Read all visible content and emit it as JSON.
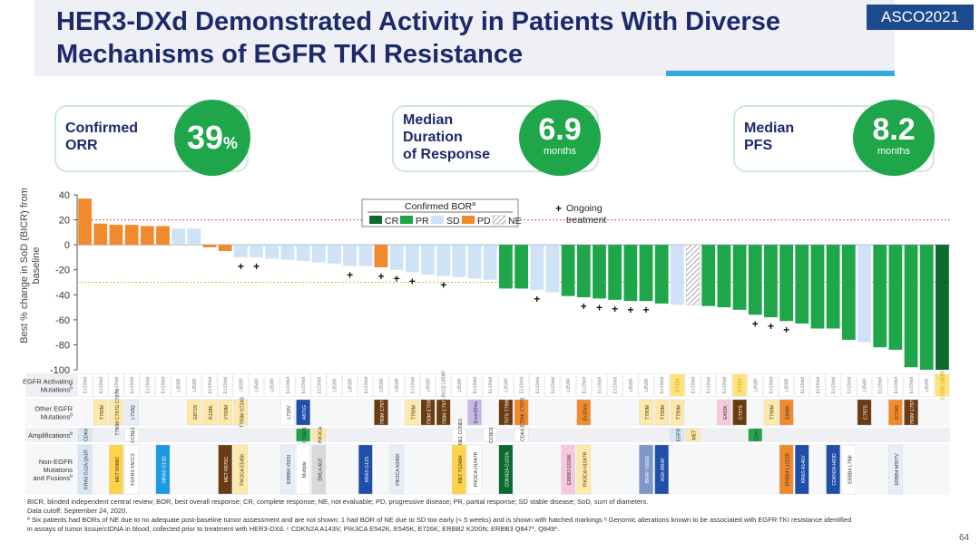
{
  "header": {
    "title_line1": "HER3-DXd Demonstrated Activity in Patients With Diverse",
    "title_line2": "Mechanisms of EGFR TKI Resistance",
    "badge": "ASCO2021"
  },
  "kpis": [
    {
      "label": [
        "Confirmed",
        "ORR"
      ],
      "value": "39",
      "unit": "%"
    },
    {
      "label": [
        "Median",
        "Duration",
        "of Response"
      ],
      "value": "6.9",
      "unit": "months"
    },
    {
      "label": [
        "Median",
        "PFS"
      ],
      "value": "8.2",
      "unit": "months"
    }
  ],
  "legend": {
    "title": "Confirmed BOR",
    "title_sup": "a",
    "entries": [
      {
        "label": "CR",
        "color": "#0c6a2f"
      },
      {
        "label": "PR",
        "color": "#1fa64a"
      },
      {
        "label": "SD",
        "color": "#cfe2f6"
      },
      {
        "label": "PD",
        "color": "#f08a2c"
      },
      {
        "label": "NE",
        "color": "hatched"
      }
    ],
    "ongoing_symbol": "+",
    "ongoing_label": [
      "Ongoing",
      "treatment"
    ]
  },
  "chart_data": {
    "type": "bar",
    "ylabel": "Best % change in SoD (BICR) from baseline",
    "ylim": [
      -100,
      40
    ],
    "yticks": [
      40,
      20,
      0,
      -20,
      -40,
      -60,
      -80,
      -100
    ],
    "reference_lines": [
      20,
      -30
    ],
    "bor_colors": {
      "CR": "#0c6a2f",
      "PR": "#1fa64a",
      "SD": "#cfe2f6",
      "PD": "#f08a2c",
      "NE": "hatched"
    },
    "values": [
      37,
      17,
      16,
      16,
      15,
      15,
      13,
      13,
      -2,
      -5,
      -10,
      -10,
      -11,
      -12,
      -13,
      -14,
      -15,
      -17,
      -17,
      -18,
      -20,
      -22,
      -24,
      -25,
      -26,
      -27,
      -28,
      -35,
      -35,
      -36,
      -38,
      -41,
      -42,
      -43,
      -44,
      -45,
      -45,
      -47,
      -48,
      -48,
      -49,
      -50,
      -52,
      -56,
      -58,
      -61,
      -63,
      -67,
      -67,
      -76,
      -78,
      -82,
      -84,
      -98,
      -100,
      -100
    ],
    "bor": [
      "PD",
      "PD",
      "PD",
      "PD",
      "PD",
      "PD",
      "SD",
      "SD",
      "PD",
      "PD",
      "SD",
      "SD",
      "SD",
      "SD",
      "SD",
      "SD",
      "SD",
      "SD",
      "SD",
      "PD",
      "SD",
      "SD",
      "SD",
      "SD",
      "SD",
      "SD",
      "SD",
      "PR",
      "PR",
      "SD",
      "SD",
      "PR",
      "PR",
      "PR",
      "PR",
      "PR",
      "PR",
      "PR",
      "SD",
      "NE",
      "PR",
      "PR",
      "PR",
      "PR",
      "PR",
      "PR",
      "PR",
      "PR",
      "PR",
      "PR",
      "SD",
      "PR",
      "PR",
      "PR",
      "PR",
      "CR"
    ],
    "ongoing": [
      10,
      11,
      17,
      19,
      20,
      21,
      23,
      29,
      32,
      33,
      34,
      35,
      36,
      43,
      44,
      45,
      53,
      55
    ],
    "table_rows": [
      {
        "label": [
          "EGFR Activating",
          "Mutations"
        ],
        "sup": "b"
      },
      {
        "label": [
          "Other EGFR",
          "Mutations"
        ],
        "sup": "b"
      },
      {
        "label": [
          "Amplifications"
        ],
        "sup": "b"
      },
      {
        "label": [
          "Non-EGFR",
          "Mutations",
          "and Fusions"
        ],
        "sup": "b"
      }
    ],
    "activating": [
      "Ex19del",
      "Ex19del",
      "Ex19del",
      "Ex19del",
      "Ex19del",
      "Ex19del",
      "L858R",
      "L858R",
      "Ex19del",
      "Ex19del",
      "L858R",
      "L858R",
      "L858R",
      "Ex19del",
      "Ex19del",
      "Ex19del",
      "L858R",
      "L858R",
      "Ex19del",
      "L858R",
      "L858R",
      "Ex19del",
      "L858R",
      "L861Q L858R",
      "L858R",
      "Ex19del",
      "Ex19del",
      "L858R",
      "Ex19del",
      "Ex19del",
      "Ex19del",
      "L858R",
      "Ex19del",
      "Ex19del",
      "Ex19del",
      "L858R",
      "L858R",
      "Ex19del",
      "G719Y",
      "Ex19del",
      "Ex19del",
      "Ex19del",
      "G719Y",
      "L858R",
      "Ex19del",
      "L858R",
      "Ex19del",
      "Ex19del",
      "Ex19del",
      "Ex19del",
      "L858R",
      "Ex19del",
      "Ex19del",
      "Ex19del",
      "L858R",
      "G719X L858R"
    ],
    "other_egfr": [
      {
        "i": 1,
        "text": "T790M",
        "color": "#ffe9a8"
      },
      {
        "i": 2,
        "text": "T790M C797G C797S",
        "color": "#ffe9a8"
      },
      {
        "i": 3,
        "text": "L718Q",
        "color": "#e8eef7"
      },
      {
        "i": 7,
        "text": "G873S",
        "color": "#ffe9a8"
      },
      {
        "i": 8,
        "text": "R108K",
        "color": "#ffe9a8"
      },
      {
        "i": 9,
        "text": "V769M",
        "color": "#ffe9a8"
      },
      {
        "i": 10,
        "text": "T790M G724S",
        "color": "#ffe9a8"
      },
      {
        "i": 13,
        "text": "L718V",
        "color": "#ffffff"
      },
      {
        "i": 14,
        "text": "A871G",
        "color": "#1f4fa8"
      },
      {
        "i": 19,
        "text": "T790M C797S",
        "color": "#6b3b12"
      },
      {
        "i": 21,
        "text": "T790M",
        "color": "#ffe9a8"
      },
      {
        "i": 22,
        "text": "T790M E709G",
        "color": "#6b3b12"
      },
      {
        "i": 23,
        "text": "T790M C797S",
        "color": "#6b3b12"
      },
      {
        "i": 25,
        "text": "Exon20ins",
        "color": "#c8b8e8"
      },
      {
        "i": 27,
        "text": "C797S T790M",
        "color": "#6b3b12"
      },
      {
        "i": 28,
        "text": "E709K C797S",
        "color": "#f08a2c"
      },
      {
        "i": 32,
        "text": "Ex20ins",
        "color": "#f08a2c"
      },
      {
        "i": 36,
        "text": "T790M",
        "color": "#ffe9a8"
      },
      {
        "i": 37,
        "text": "T790M",
        "color": "#ffe9a8"
      },
      {
        "i": 38,
        "text": "T790M",
        "color": "#ffe9a8"
      },
      {
        "i": 41,
        "text": "E492K",
        "color": "#f7c8dc"
      },
      {
        "i": 42,
        "text": "C797S",
        "color": "#6b3b12"
      },
      {
        "i": 44,
        "text": "T790M",
        "color": "#ffe9a8"
      },
      {
        "i": 45,
        "text": "E848K",
        "color": "#f08a2c"
      },
      {
        "i": 50,
        "text": "C797S",
        "color": "#6b3b12"
      },
      {
        "i": 52,
        "text": "G724S",
        "color": "#f08a2c"
      },
      {
        "i": 53,
        "text": "T790M C797S",
        "color": "#6b3b12"
      }
    ],
    "amplifications": [
      {
        "i": 0,
        "text": "CDK4",
        "color": "#d6e6f5"
      },
      {
        "i": 3,
        "text": "CCNE1",
        "color": "#ffffff"
      },
      {
        "i": 14,
        "text": "CCND1",
        "color": "#1fa64a"
      },
      {
        "i": 15,
        "text": "PIK3CA",
        "color": "#ffe9a8"
      },
      {
        "i": 24,
        "text": "CCNE1 CCND1",
        "color": "#ffffff"
      },
      {
        "i": 26,
        "text": "CCND1",
        "color": "#ffffff"
      },
      {
        "i": 28,
        "text": "CDK4",
        "color": "#ffffff"
      },
      {
        "i": 38,
        "text": "EGFR",
        "color": "#d6e6f5"
      },
      {
        "i": 39,
        "text": "MET",
        "color": "#ffe9a8"
      },
      {
        "i": 43,
        "text": "CDK4",
        "color": "#1fa64a"
      }
    ],
    "non_egfr": [
      {
        "i": 0,
        "text": "KRAS G12A Q61R",
        "color": "#d6e6f5"
      },
      {
        "i": 2,
        "text": "MET R988C",
        "color": "#ffd24a"
      },
      {
        "i": 3,
        "text": "FGFR3-TACC3",
        "color": "#ffffff"
      },
      {
        "i": 5,
        "text": "NRAS G13D",
        "color": "#1c9ae0"
      },
      {
        "i": 9,
        "text": "MET R970C",
        "color": "#6b3b12"
      },
      {
        "i": 10,
        "text": "PIK3CA E545K",
        "color": "#ffe9a8"
      },
      {
        "i": 13,
        "text": "ERBB4 V903I",
        "color": "#e8eef7"
      },
      {
        "i": 14,
        "text": "Multiple",
        "color": "#ffffff"
      },
      {
        "i": 15,
        "text": "EML4-ALK",
        "color": "#d9d9d9"
      },
      {
        "i": 18,
        "text": "KRAS G12S",
        "color": "#1f4fa8"
      },
      {
        "i": 20,
        "text": "PIK3CA N345K",
        "color": "#e8eef7"
      },
      {
        "i": 24,
        "text": "MET Y1248H",
        "color": "#ffd24a"
      },
      {
        "i": 25,
        "text": "PIK3CA H1047R",
        "color": "#ffffff"
      },
      {
        "i": 27,
        "text": "CDKN2A G101fs",
        "color": "#0c6a2f"
      },
      {
        "i": 31,
        "text": "ERBB3 E928K",
        "color": "#f7c8dc"
      },
      {
        "i": 32,
        "text": "PIK3CA H1047R",
        "color": "#ffe9a8"
      },
      {
        "i": 36,
        "text": "BRAF V600E",
        "color": "#7f97c8"
      },
      {
        "i": 37,
        "text": "AGK-BRAF",
        "color": "#1f4fa8"
      },
      {
        "i": 45,
        "text": "ERBB4 L1223R",
        "color": "#f08a2c"
      },
      {
        "i": 46,
        "text": "KRAS A146V",
        "color": "#1f4fa8"
      },
      {
        "i": 48,
        "text": "CDKN2A H83D",
        "color": "#1f4fa8"
      },
      {
        "i": 49,
        "text": "ERBB4 L798I",
        "color": "#ffffff"
      },
      {
        "i": 52,
        "text": "ERBB4 M507V",
        "color": "#e8eef7"
      }
    ]
  },
  "footnotes": {
    "line1": "BICR, blinded independent central review; BOR, best overall response; CR, complete response; NE, not evaluable; PD, progressive disease; PR, partial response; SD stable disease; SoD, sum of diameters.",
    "line2": "Data cutoff: September 24, 2020.",
    "line3": "ª Six patients had BORs of NE due to no adequate post-baseline tumor assessment and are not shown; 1 had BOR of NE due to SD too early (< 5 weeks) and is shown with hatched markings ᵇ Genomic alterations known to be associated with EGFR TKI resistance identified",
    "line4": "in assays of tumor tissue/ctDNA in blood, collected prior to treatment with HER3-DXd. ᶜ CDKN2A A143V; PIK3CA E542K, E545K, E726K; ERBB2 K200N; ERBB3 Q847*, Q849*."
  },
  "page_number": "64"
}
